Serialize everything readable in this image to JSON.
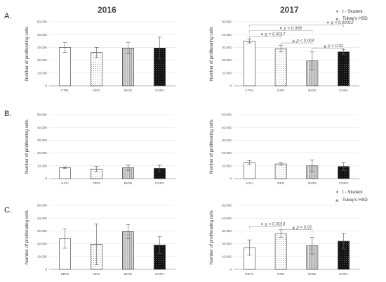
{
  "figure": {
    "row_labels": [
      "A.",
      "B.",
      "C."
    ],
    "year_labels": [
      "2016",
      "2017"
    ]
  },
  "legend": {
    "t_student": {
      "symbol": "♦",
      "label": "t - Student"
    },
    "tukey": {
      "symbol": "▲",
      "label": "Tukey's HSD"
    }
  },
  "chart_data": [
    {
      "type": "bar",
      "panel": "A-2016",
      "categories": [
        "CTRL",
        "ORG",
        "BIOD",
        "CONV"
      ],
      "values": [
        30000,
        26000,
        29500,
        29500
      ],
      "errors": [
        4000,
        4000,
        4500,
        8500
      ],
      "ylabel": "Number of proliferating cells",
      "ylim": [
        0,
        50000
      ],
      "yticks": [
        "0",
        "10,000",
        "20,000",
        "30,000",
        "40,000",
        "50,000"
      ],
      "grid": true,
      "annotations": []
    },
    {
      "type": "bar",
      "panel": "A-2017",
      "categories": [
        "CTRL",
        "ORG",
        "BIOD",
        "CONV"
      ],
      "values": [
        35000,
        29000,
        19500,
        26500
      ],
      "errors": [
        1500,
        2500,
        7000,
        2000
      ],
      "ylabel": "Number of proliferating cells",
      "ylim": [
        0,
        50000
      ],
      "yticks": [
        "0",
        "10,000",
        "20,000",
        "30,000",
        "40,000",
        "50,000"
      ],
      "grid": true,
      "annotations": [
        {
          "from": 0,
          "to": 3,
          "level": 47500,
          "symbol": "♦",
          "text": "p < 0.00012",
          "pos": 2.6
        },
        {
          "from": 0,
          "to": 2,
          "level": 43000,
          "symbol": "♦",
          "text": "p < 0.008",
          "pos": 1.1
        },
        {
          "from": 0,
          "to": 1,
          "level": 38500,
          "symbol": "♦",
          "text": "p < 0.0017",
          "pos": 0.5
        },
        {
          "from": 1,
          "to": 2,
          "level": 33500,
          "symbol": "▲",
          "text": "p < 0.004",
          "pos": 1.5
        },
        {
          "from": 2,
          "to": 3,
          "level": 29500,
          "symbol": "▲",
          "text": "p < 0.02",
          "pos": 2.5
        }
      ]
    },
    {
      "type": "bar",
      "panel": "B-2016",
      "categories": [
        "5-FU",
        "ORG",
        "BIOD",
        "CONV"
      ],
      "values": [
        8500,
        7500,
        8500,
        8000
      ],
      "errors": [
        500,
        2000,
        2000,
        2500
      ],
      "ylabel": "Number of proliferating cells",
      "ylim": [
        0,
        50000
      ],
      "yticks": [
        "0",
        "10,000",
        "20,000",
        "30,000",
        "40,000",
        "50,000"
      ],
      "grid": true,
      "annotations": []
    },
    {
      "type": "bar",
      "panel": "B-2017",
      "categories": [
        "5-FU",
        "ORG",
        "BIOD",
        "CONV"
      ],
      "values": [
        12500,
        11500,
        10000,
        9500
      ],
      "errors": [
        1500,
        1000,
        4500,
        3000
      ],
      "ylabel": "Number of proliferating cells",
      "ylim": [
        0,
        50000
      ],
      "yticks": [
        "0",
        "10,000",
        "20,000",
        "30,000",
        "40,000",
        "50,000"
      ],
      "grid": true,
      "annotations": []
    },
    {
      "type": "bar",
      "panel": "C-2016",
      "categories": [
        "EBTX",
        "ORG",
        "BIOD",
        "CONV"
      ],
      "values": [
        24000,
        19500,
        29500,
        19000
      ],
      "errors": [
        7500,
        16000,
        5500,
        6500
      ],
      "ylabel": "Number of proliferating cells",
      "ylim": [
        0,
        50000
      ],
      "yticks": [
        "0",
        "10,000",
        "20,000",
        "30,000",
        "40,000",
        "50,000"
      ],
      "grid": true,
      "annotations": []
    },
    {
      "type": "bar",
      "panel": "C-2017",
      "categories": [
        "EBTX",
        "ORG",
        "BIOD",
        "CONV"
      ],
      "values": [
        17000,
        28000,
        18500,
        22000
      ],
      "errors": [
        6000,
        3000,
        6500,
        6000
      ],
      "ylabel": "Number of proliferating cells",
      "ylim": [
        0,
        50000
      ],
      "yticks": [
        "0",
        "10,000",
        "20,000",
        "30,000",
        "40,000",
        "50,000"
      ],
      "grid": true,
      "annotations": [
        {
          "from": 0,
          "to": 1,
          "level": 33500,
          "symbol": "♦",
          "text": "p < 0.0018",
          "pos": 0.5
        },
        {
          "from": 1,
          "to": 2,
          "level": 31000,
          "symbol": "▲",
          "text": "p < 0.02",
          "pos": 1.5
        }
      ]
    }
  ]
}
